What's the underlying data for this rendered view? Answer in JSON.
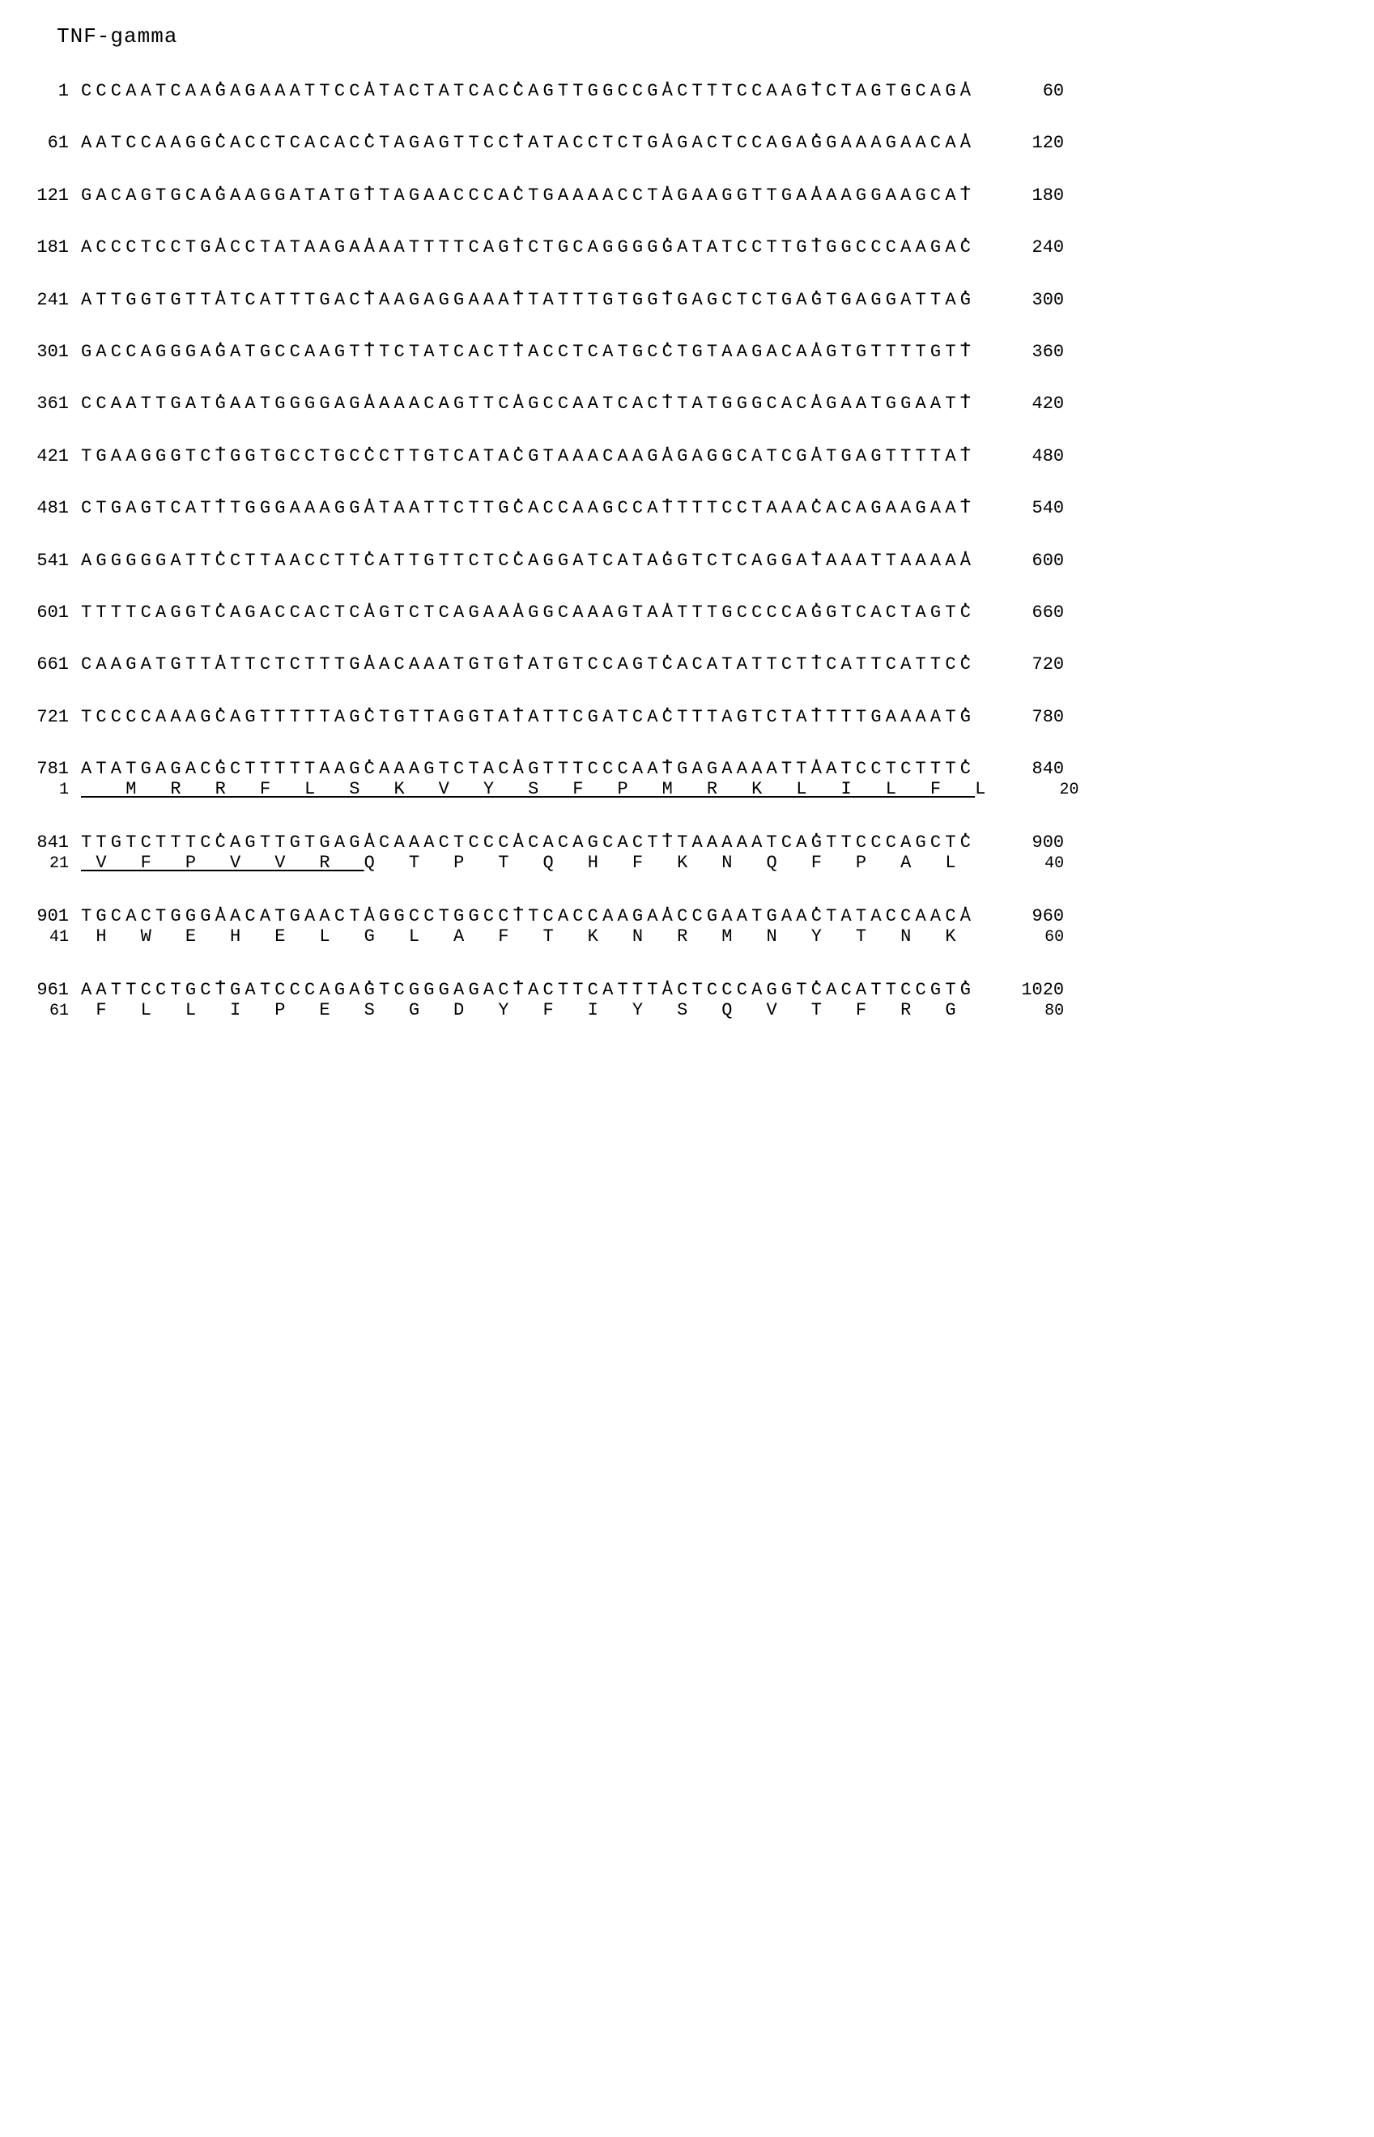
{
  "title": "TNF-gamma",
  "font_family": "Courier New, monospace",
  "colors": {
    "background": "#ffffff",
    "text": "#000000"
  },
  "dot_pattern": "         .         .         .         .         .         .",
  "rows": [
    {
      "left": "1",
      "seq": "CCCAATCAAGAGAAATTCCATACTATCACCAGTTGGCCGACTTTCCAAGTCTAGTGCAGA",
      "right": "60",
      "aa": null
    },
    {
      "left": "61",
      "seq": "AATCCAAGGCACCTCACACCTAGAGTTCCTATACCTCTGAGACTCCAGAGGAAAGAACAA",
      "right": "120",
      "aa": null
    },
    {
      "left": "121",
      "seq": "GACAGTGCAGAAGGATATGTTAGAACCCACTGAAAACCTAGAAGGTTGAAAAGGAAGCAT",
      "right": "180",
      "aa": null
    },
    {
      "left": "181",
      "seq": "ACCCTCCTGACCTATAAGAAAATTTTCAGTCTGCAGGGGGATATCCTTGTGGCCCAAGAC",
      "right": "240",
      "aa": null
    },
    {
      "left": "241",
      "seq": "ATTGGTGTTATCATTTGACTAAGAGGAAATTATTTGTGGTGAGCTCTGAGTGAGGATTAG",
      "right": "300",
      "aa": null
    },
    {
      "left": "301",
      "seq": "GACCAGGGAGATGCCAAGTTTCTATCACTTACCTCATGCCTGTAAGACAAGTGTTTTGTT",
      "right": "360",
      "aa": null
    },
    {
      "left": "361",
      "seq": "CCAATTGATGAATGGGGAGAAAACAGTTCAGCCAATCACTTATGGGCACAGAATGGAATT",
      "right": "420",
      "aa": null
    },
    {
      "left": "421",
      "seq": "TGAAGGGTCTGGTGCCTGCCCTTGTCATACGTAAACAAGAGAGGCATCGATGAGTTTTAT",
      "right": "480",
      "aa": null
    },
    {
      "left": "481",
      "seq": "CTGAGTCATTTGGGAAAGGATAATTCTTGCACCAAGCCATTTTCCTAAACACAGAAGAAT",
      "right": "540",
      "aa": null
    },
    {
      "left": "541",
      "seq": "AGGGGGATTCCTTAACCTTCATTGTTCTCCAGGATCATAGGTCTCAGGATAAATTAAAAA",
      "right": "600",
      "aa": null
    },
    {
      "left": "601",
      "seq": "TTTTCAGGTCAGACCACTCAGTCTCAGAAAGGCAAAGTAATTTGCCCCAGGTCACTAGTC",
      "right": "660",
      "aa": null
    },
    {
      "left": "661",
      "seq": "CAAGATGTTATTCTCTTTGAACAAATGTGTATGTCCAGTCACATATTCTTCATTCATTCC",
      "right": "720",
      "aa": null
    },
    {
      "left": "721",
      "seq": "TCCCCAAAGCAGTTTTTAGCTGTTAGGTATATTCGATCACTTTAGTCTATTTTGAAAATG",
      "right": "780",
      "aa": null
    },
    {
      "left": "781",
      "seq": "ATATGAGACGCTTTTTAAGCAAAGTCTACAGTTTCCCAATGAGAAAATTAATCCTCTTTC",
      "right": "840",
      "aa": {
        "left": "1",
        "text": "   M  R  R  F  L  S  K  V  Y  S  F  P  M  R  K  L  I  L  F  L",
        "right": "20",
        "underline_chars": 60
      }
    },
    {
      "left": "841",
      "seq": "TTGTCTTTCCAGTTGTGAGACAAACTCCCACACAGCACTTTAAAAATCAGTTCCCAGCTC",
      "right": "900",
      "aa": {
        "left": "21",
        "text": " V  F  P  V  V  R  Q  T  P  T  Q  H  F  K  N  Q  F  P  A  L ",
        "right": "40",
        "underline_chars": 19
      }
    },
    {
      "left": "901",
      "seq": "TGCACTGGGAACATGAACTAGGCCTGGCCTTCACCAAGAACCGAATGAACTATACCAACA",
      "right": "960",
      "aa": {
        "left": "41",
        "text": " H  W  E  H  E  L  G  L  A  F  T  K  N  R  M  N  Y  T  N  K ",
        "right": "60",
        "underline_chars": 0
      }
    },
    {
      "left": "961",
      "seq": "AATTCCTGCTGATCCCAGAGTCGGGAGACTACTTCATTTACTCCCAGGTCACATTCCGTG",
      "right": "1020",
      "aa": {
        "left": "61",
        "text": " F  L  L  I  P  E  S  G  D  Y  F  I  Y  S  Q  V  T  F  R  G ",
        "right": "80",
        "underline_chars": 0
      }
    }
  ]
}
